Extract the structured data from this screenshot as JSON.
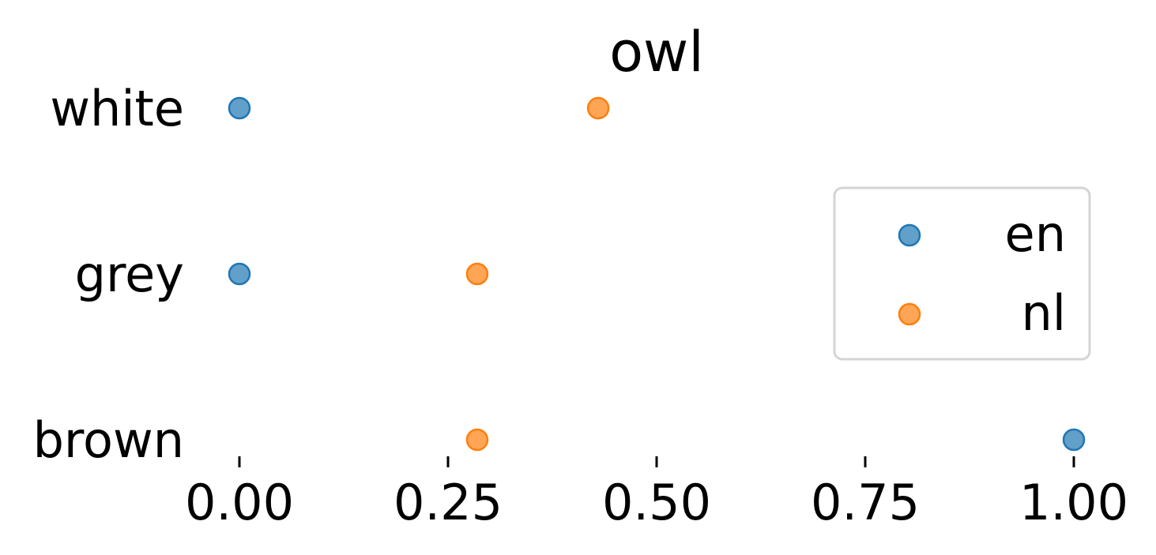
{
  "chart_data": {
    "type": "scatter",
    "title": "owl",
    "categories": [
      "white",
      "grey",
      "brown"
    ],
    "x_ticks": [
      "0.00",
      "0.25",
      "0.50",
      "0.75",
      "1.00"
    ],
    "xlim": [
      0.0,
      1.0
    ],
    "grid": false,
    "legend_position": "right",
    "series": [
      {
        "name": "en",
        "color": "#1f77b4",
        "values": [
          0.0,
          0.0,
          1.0
        ]
      },
      {
        "name": "nl",
        "color": "#ff7f0e",
        "values": [
          0.43,
          0.285,
          0.285
        ]
      }
    ]
  }
}
